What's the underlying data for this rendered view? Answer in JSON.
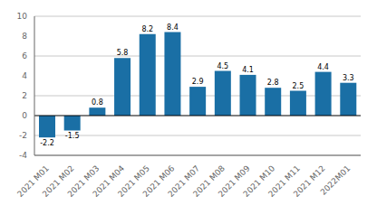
{
  "chart_data": {
    "type": "bar",
    "categories": [
      "2021 M01",
      "2021 M02",
      "2021 M03",
      "2021 M04",
      "2021 M05",
      "2021 M06",
      "2021 M07",
      "2021 M08",
      "2021 M09",
      "2021 M10",
      "2021 M11",
      "2021 M12",
      "2022M01"
    ],
    "values": [
      -2.2,
      -1.5,
      0.8,
      5.8,
      8.2,
      8.4,
      2.9,
      4.5,
      4.1,
      2.8,
      2.5,
      4.4,
      3.3
    ],
    "color": "#1a6fa5",
    "ylim": [
      -4,
      10
    ],
    "yticks": [
      -4,
      -2,
      0,
      2,
      4,
      6,
      8,
      10
    ],
    "grid": true,
    "data_labels": true
  }
}
